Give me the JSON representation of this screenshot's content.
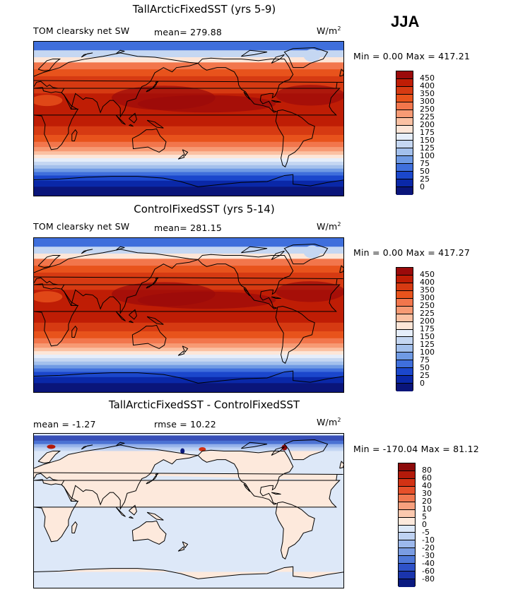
{
  "season": "JJA",
  "units_base": "W/m",
  "units_exp": "2",
  "panels": [
    {
      "title": "TallArcticFixedSST (yrs 5-9)",
      "variable": "TOM clearsky net SW",
      "stat1": "mean= 279.88",
      "stat2": "",
      "range": "Min =   0.00 Max = 417.21",
      "levels": [
        "450",
        "400",
        "350",
        "300",
        "250",
        "225",
        "200",
        "175",
        "150",
        "125",
        "100",
        "75",
        "50",
        "25",
        "0"
      ],
      "colors": [
        "#9b0a0a",
        "#bf1d05",
        "#d63a12",
        "#e8531c",
        "#f2764c",
        "#f79a74",
        "#fbc1a3",
        "#fde6d8",
        "#e6eefa",
        "#c5d7f2",
        "#a3c0ec",
        "#6f9ae4",
        "#3f6fdc",
        "#1b47cc",
        "#0a28a8",
        "#0a157a"
      ],
      "chart_data": {
        "type": "heatmap",
        "title": "TallArcticFixedSST (yrs 5-9)",
        "subtitle": "TOM clearsky net SW",
        "mean": 279.88,
        "min": 0.0,
        "max": 417.21,
        "units": "W/m^2",
        "contour_levels": [
          0,
          25,
          50,
          75,
          100,
          125,
          150,
          175,
          200,
          225,
          250,
          300,
          350,
          400,
          450
        ]
      }
    },
    {
      "title": "ControlFixedSST (yrs 5-14)",
      "variable": "TOM clearsky net SW",
      "stat1": "mean= 281.15",
      "stat2": "",
      "range": "Min =   0.00 Max = 417.27",
      "levels": [
        "450",
        "400",
        "350",
        "300",
        "250",
        "225",
        "200",
        "175",
        "150",
        "125",
        "100",
        "75",
        "50",
        "25",
        "0"
      ],
      "colors": [
        "#9b0a0a",
        "#bf1d05",
        "#d63a12",
        "#e8531c",
        "#f2764c",
        "#f79a74",
        "#fbc1a3",
        "#fde6d8",
        "#e6eefa",
        "#c5d7f2",
        "#a3c0ec",
        "#6f9ae4",
        "#3f6fdc",
        "#1b47cc",
        "#0a28a8",
        "#0a157a"
      ],
      "chart_data": {
        "type": "heatmap",
        "title": "ControlFixedSST (yrs 5-14)",
        "subtitle": "TOM clearsky net SW",
        "mean": 281.15,
        "min": 0.0,
        "max": 417.27,
        "units": "W/m^2",
        "contour_levels": [
          0,
          25,
          50,
          75,
          100,
          125,
          150,
          175,
          200,
          225,
          250,
          300,
          350,
          400,
          450
        ]
      }
    },
    {
      "title": "TallArcticFixedSST - ControlFixedSST",
      "variable": "",
      "stat1": "mean =  -1.27",
      "stat2": "rmse =  10.22",
      "range": "Min = -170.04 Max =  81.12",
      "levels": [
        "80",
        "60",
        "40",
        "30",
        "20",
        "10",
        "5",
        "0",
        "-5",
        "-10",
        "-20",
        "-30",
        "-40",
        "-60",
        "-80"
      ],
      "colors": [
        "#8c0a0a",
        "#b41a0a",
        "#d23214",
        "#e6502a",
        "#f07850",
        "#f7a07e",
        "#fbc8ae",
        "#fde9dc",
        "#dde8f8",
        "#bfd2f2",
        "#9cb8ec",
        "#7a9ce2",
        "#4f78d8",
        "#2e52c8",
        "#1a34ac",
        "#0a1a80"
      ],
      "chart_data": {
        "type": "heatmap",
        "title": "TallArcticFixedSST - ControlFixedSST",
        "mean": -1.27,
        "rmse": 10.22,
        "min": -170.04,
        "max": 81.12,
        "units": "W/m^2",
        "contour_levels": [
          -80,
          -60,
          -40,
          -30,
          -20,
          -10,
          -5,
          0,
          5,
          10,
          20,
          30,
          40,
          60,
          80
        ]
      }
    }
  ]
}
